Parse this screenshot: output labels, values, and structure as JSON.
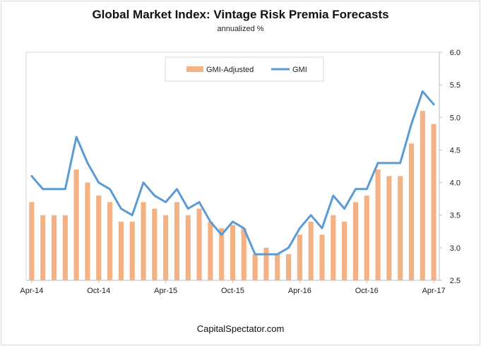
{
  "chart_data": {
    "type": "bar",
    "title": "Global Market Index: Vintage Risk Premia Forecasts",
    "subtitle": "annualized %",
    "source": "CapitalSpectator.com",
    "ylim": [
      2.5,
      6.0
    ],
    "yticks": [
      "6.0",
      "5.5",
      "5.0",
      "4.5",
      "4.0",
      "3.5",
      "3.0",
      "2.5"
    ],
    "ytick_values": [
      6.0,
      5.5,
      5.0,
      4.5,
      4.0,
      3.5,
      3.0,
      2.5
    ],
    "xtick_labels": [
      "Apr-14",
      "Oct-14",
      "Apr-15",
      "Oct-15",
      "Apr-16",
      "Oct-16",
      "Apr-17"
    ],
    "xtick_indices": [
      0,
      6,
      12,
      18,
      24,
      30,
      36
    ],
    "categories": [
      "Apr-14",
      "May-14",
      "Jun-14",
      "Jul-14",
      "Aug-14",
      "Sep-14",
      "Oct-14",
      "Nov-14",
      "Dec-14",
      "Jan-15",
      "Feb-15",
      "Mar-15",
      "Apr-15",
      "May-15",
      "Jun-15",
      "Jul-15",
      "Aug-15",
      "Sep-15",
      "Oct-15",
      "Nov-15",
      "Dec-15",
      "Jan-16",
      "Feb-16",
      "Mar-16",
      "Apr-16",
      "May-16",
      "Jun-16",
      "Jul-16",
      "Aug-16",
      "Sep-16",
      "Oct-16",
      "Nov-16",
      "Dec-16",
      "Jan-17",
      "Feb-17",
      "Mar-17",
      "Apr-17"
    ],
    "legend_position": "top-center",
    "series": [
      {
        "name": "GMI-Adjusted",
        "kind": "bar",
        "color": "#f4b183",
        "values": [
          3.7,
          3.5,
          3.5,
          3.5,
          4.2,
          4.0,
          3.8,
          3.7,
          3.4,
          3.4,
          3.7,
          3.6,
          3.5,
          3.7,
          3.5,
          3.6,
          3.4,
          3.3,
          3.35,
          3.3,
          2.9,
          3.0,
          2.9,
          2.9,
          3.2,
          3.4,
          3.2,
          3.5,
          3.4,
          3.7,
          3.8,
          4.2,
          4.1,
          4.1,
          4.6,
          5.1,
          4.9
        ]
      },
      {
        "name": "GMI",
        "kind": "line",
        "color": "#5b9bd5",
        "values": [
          4.1,
          3.9,
          3.9,
          3.9,
          4.7,
          4.3,
          4.0,
          3.9,
          3.6,
          3.5,
          4.0,
          3.8,
          3.7,
          3.9,
          3.6,
          3.7,
          3.4,
          3.2,
          3.4,
          3.3,
          2.9,
          2.9,
          2.9,
          3.0,
          3.3,
          3.5,
          3.3,
          3.8,
          3.6,
          3.9,
          3.9,
          4.3,
          4.3,
          4.3,
          4.9,
          5.4,
          5.2
        ]
      }
    ]
  }
}
